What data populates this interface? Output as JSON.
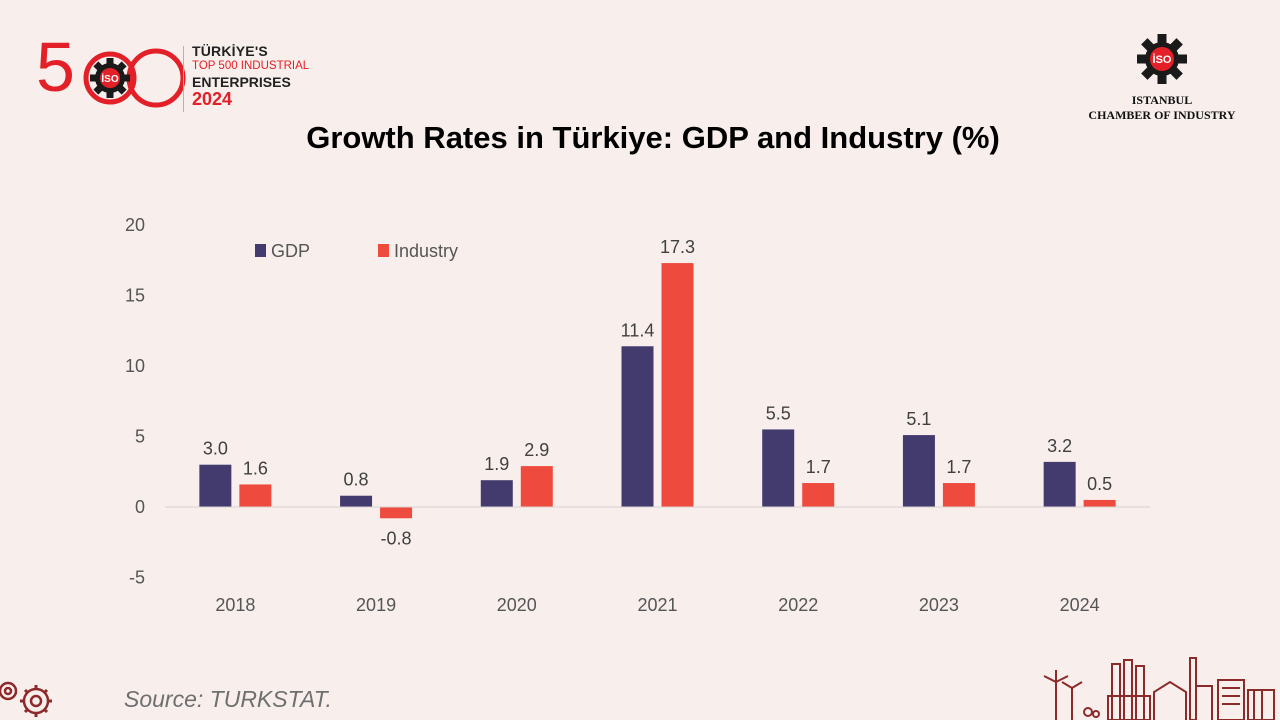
{
  "branding": {
    "logo_number": "500",
    "line1": "TÜRKİYE'S",
    "line2": "TOP 500 INDUSTRIAL",
    "line3": "ENTERPRISES",
    "year": "2024",
    "iso_mark": "İSO",
    "org_line1": "ISTANBUL",
    "org_line2": "CHAMBER OF INDUSTRY"
  },
  "colors": {
    "gdp": "#433a6e",
    "industry": "#ee4b3e",
    "accent_red": "#e32027",
    "background": "#f8efed"
  },
  "chart_data": {
    "type": "bar",
    "title": "Growth Rates in Türkiye: GDP and Industry (%)",
    "categories": [
      "2018",
      "2019",
      "2020",
      "2021",
      "2022",
      "2023",
      "2024"
    ],
    "series": [
      {
        "name": "GDP",
        "values": [
          3.0,
          0.8,
          1.9,
          11.4,
          5.5,
          5.1,
          3.2
        ],
        "labels": [
          "3.0",
          "0.8",
          "1.9",
          "11.4",
          "5.5",
          "5.1",
          "3.2"
        ]
      },
      {
        "name": "Industry",
        "values": [
          1.6,
          -0.8,
          2.9,
          17.3,
          1.7,
          1.7,
          0.5
        ],
        "labels": [
          "1.6",
          "-0.8",
          "2.9",
          "17.3",
          "1.7",
          "1.7",
          "0.5"
        ]
      }
    ],
    "ylim": [
      -5,
      20
    ],
    "yticks": [
      -5,
      0,
      5,
      10,
      15,
      20
    ],
    "xlabel": "",
    "ylabel": "",
    "legend_position": "top-left",
    "grid": false
  },
  "source": "Source: TURKSTAT."
}
